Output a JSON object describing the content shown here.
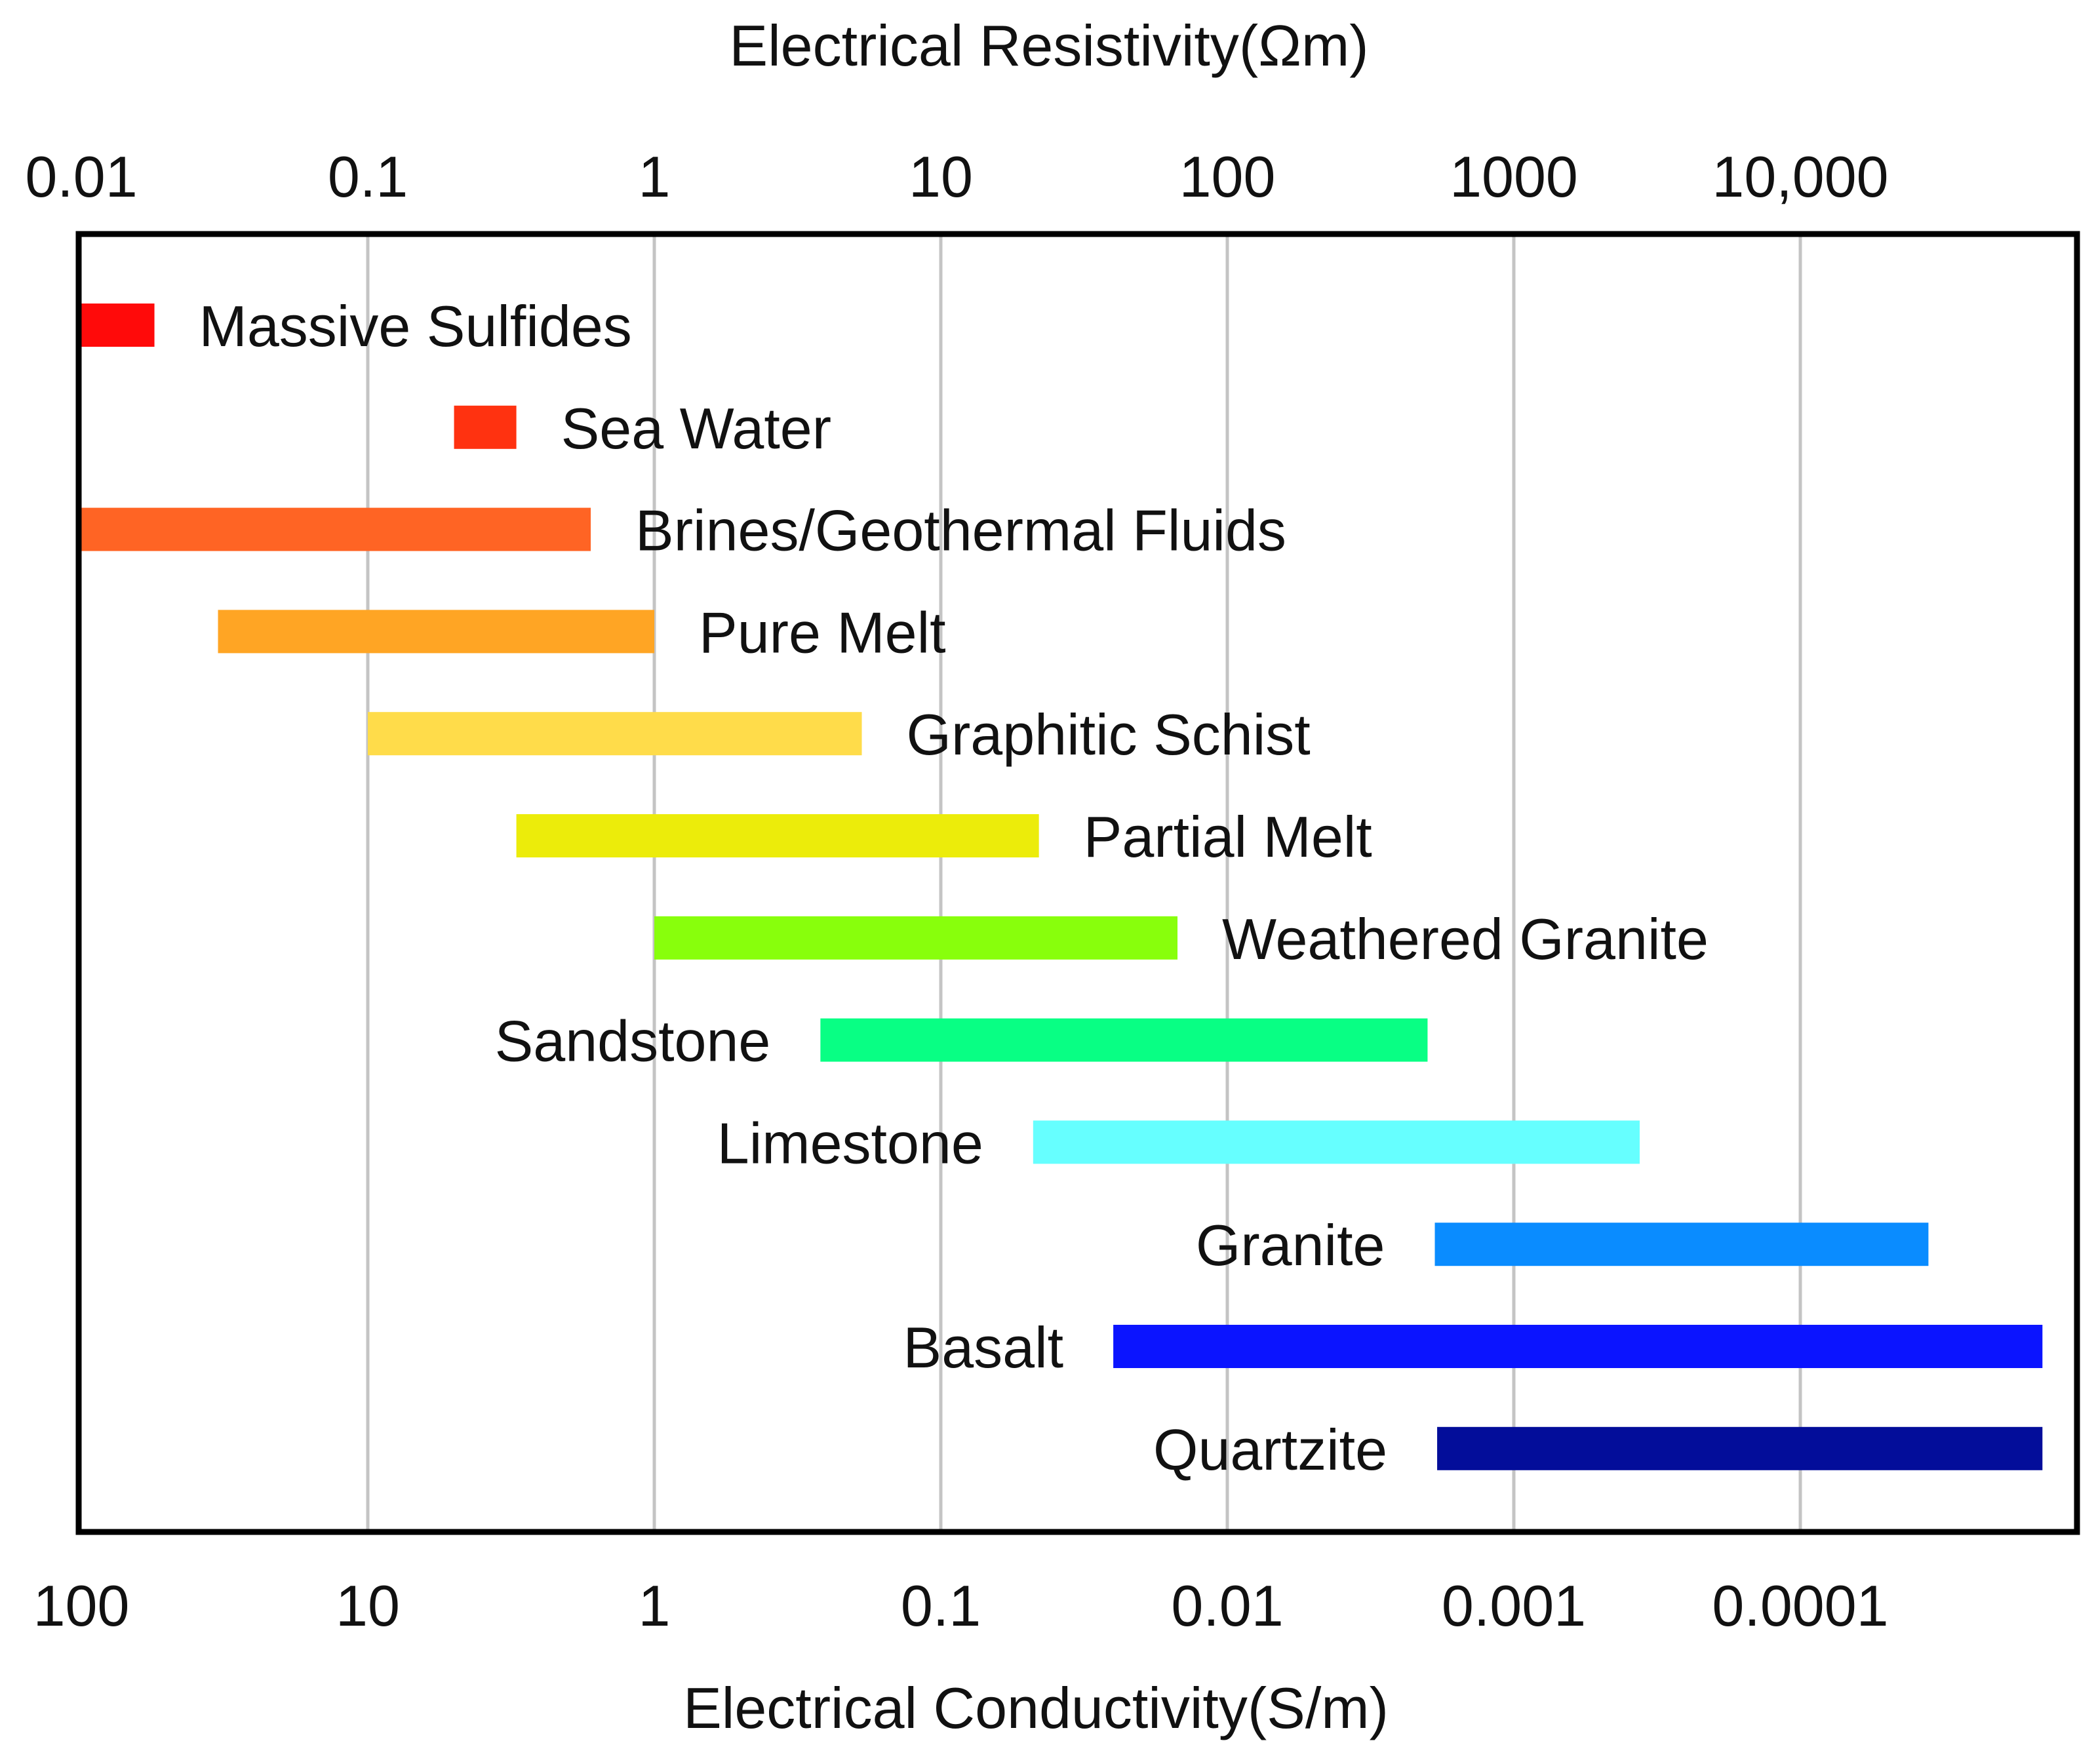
{
  "chart_data": {
    "type": "bar",
    "orientation": "horizontal-range",
    "scale": "log",
    "top_axis": {
      "title": "Electrical Resistivity(Ωm)",
      "ticks": [
        {
          "value": 0.01,
          "label": "0.01"
        },
        {
          "value": 0.1,
          "label": "0.1"
        },
        {
          "value": 1,
          "label": "1"
        },
        {
          "value": 10,
          "label": "10"
        },
        {
          "value": 100,
          "label": "100"
        },
        {
          "value": 1000,
          "label": "1000"
        },
        {
          "value": 10000,
          "label": "10,000"
        }
      ]
    },
    "bottom_axis": {
      "title": "Electrical Conductivity(S/m)",
      "ticks": [
        {
          "value": 100,
          "label": "100"
        },
        {
          "value": 10,
          "label": "10"
        },
        {
          "value": 1,
          "label": "1"
        },
        {
          "value": 0.1,
          "label": "0.1"
        },
        {
          "value": 0.01,
          "label": "0.01"
        },
        {
          "value": 0.001,
          "label": "0.001"
        },
        {
          "value": 0.0001,
          "label": "0.0001"
        }
      ]
    },
    "xlim_resistivity": [
      0.01,
      70000
    ],
    "grid": true,
    "series": [
      {
        "name": "Massive Sulfides",
        "min": 0.01,
        "max": 0.018,
        "color": "#ff0a0a",
        "label_side": "right"
      },
      {
        "name": "Sea Water",
        "min": 0.2,
        "max": 0.33,
        "color": "#ff3210",
        "label_side": "right"
      },
      {
        "name": "Brines/Geothermal Fluids",
        "min": 0.01,
        "max": 0.6,
        "color": "#ff6424",
        "label_side": "right"
      },
      {
        "name": "Pure Melt",
        "min": 0.03,
        "max": 1,
        "color": "#ffa524",
        "label_side": "right"
      },
      {
        "name": "Graphitic Schist",
        "min": 0.1,
        "max": 5.3,
        "color": "#ffdc4a",
        "label_side": "right"
      },
      {
        "name": "Partial Melt",
        "min": 0.33,
        "max": 22,
        "color": "#ecec0a",
        "label_side": "right"
      },
      {
        "name": "Weathered Granite",
        "min": 1,
        "max": 67,
        "color": "#88ff0c",
        "label_side": "right"
      },
      {
        "name": "Sandstone",
        "min": 3.8,
        "max": 500,
        "color": "#08ff84",
        "label_side": "left"
      },
      {
        "name": "Limestone",
        "min": 21,
        "max": 2750,
        "color": "#66ffff",
        "label_side": "left"
      },
      {
        "name": "Granite",
        "min": 530,
        "max": 28000,
        "color": "#0a8cff",
        "label_side": "left"
      },
      {
        "name": "Basalt",
        "min": 40,
        "max": 70000,
        "color": "#0b14ff",
        "label_side": "left"
      },
      {
        "name": "Quartzite",
        "min": 540,
        "max": 70000,
        "color": "#030d9a",
        "label_side": "left"
      }
    ]
  }
}
